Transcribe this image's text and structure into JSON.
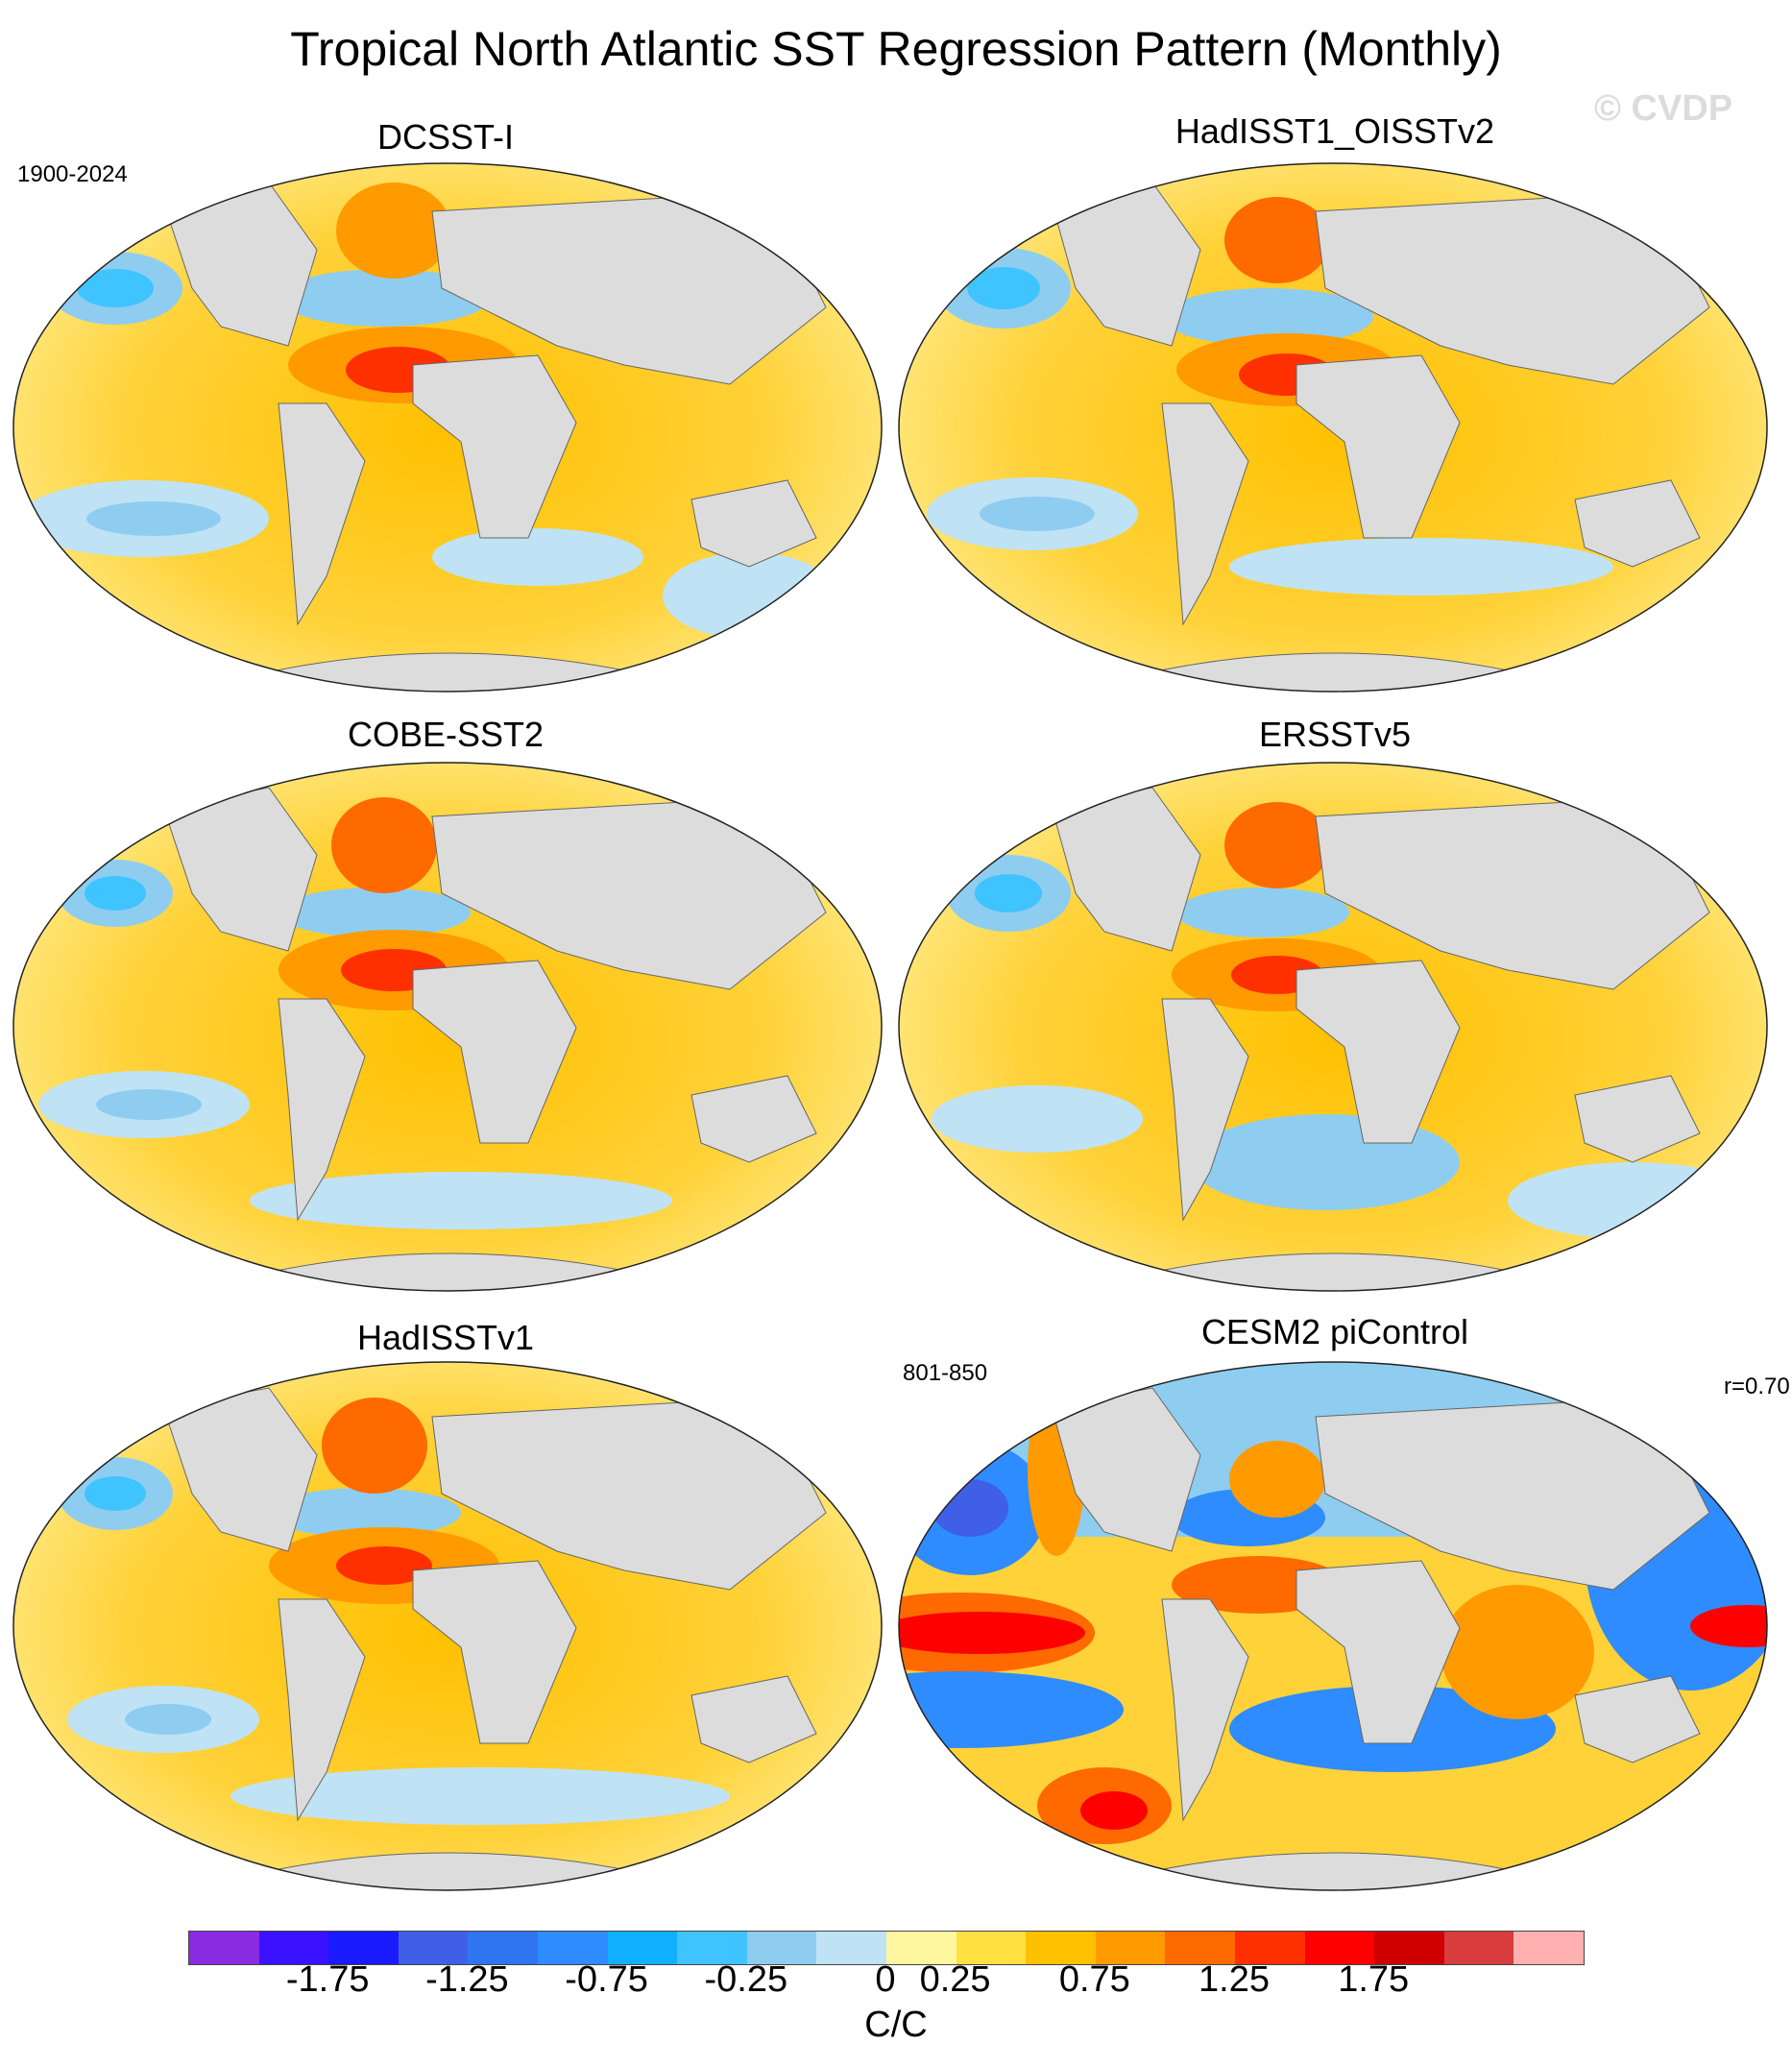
{
  "title": "Tropical North Atlantic SST Regression Pattern (Monthly)",
  "watermark": "© CVDP",
  "panels": [
    {
      "name": "DCSST-I",
      "period": "1900-2024",
      "corr": ""
    },
    {
      "name": "HadISST1_OISSTv2",
      "period": "",
      "corr": ""
    },
    {
      "name": "COBE-SST2",
      "period": "",
      "corr": ""
    },
    {
      "name": "ERSSTv5",
      "period": "",
      "corr": ""
    },
    {
      "name": "HadISSTv1",
      "period": "",
      "corr": ""
    },
    {
      "name": "CESM2 piControl",
      "period": "801-850",
      "corr": "r=0.70"
    }
  ],
  "colorbar": {
    "colors": [
      "#8a2be2",
      "#3b12ff",
      "#1a1aff",
      "#3f5fe6",
      "#2f75f0",
      "#2e8cff",
      "#10b0ff",
      "#40c4ff",
      "#8fcdf0",
      "#bfe3f4",
      "#fff7a0",
      "#ffe040",
      "#ffc000",
      "#ff9a00",
      "#ff6a00",
      "#ff3000",
      "#ff0000",
      "#d00000",
      "#d83c3c",
      "#ffb0b0"
    ],
    "tick_labels": [
      "-1.75",
      "-1.25",
      "-0.75",
      "-0.25",
      "0",
      "0.25",
      "0.75",
      "1.25",
      "1.75"
    ],
    "units": "C/C"
  }
}
